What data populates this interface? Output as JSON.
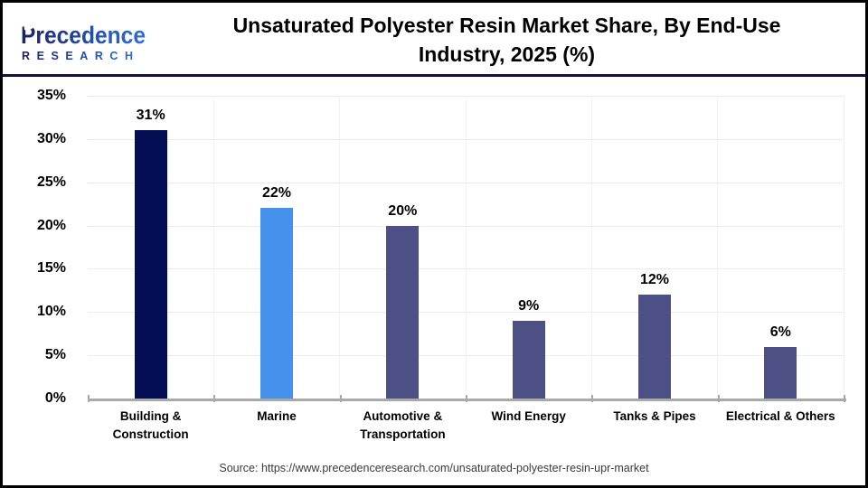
{
  "header": {
    "logo": {
      "name": "Precedence",
      "sub": "RESEARCH"
    },
    "title_lines": [
      "Unsaturated Polyester Resin Market Share, By End-Use",
      "Industry, 2025 (%)"
    ]
  },
  "chart_data": {
    "type": "bar",
    "title": "Unsaturated Polyester Resin Market Share, By End-Use Industry, 2025 (%)",
    "categories": [
      "Building & Construction",
      "Marine",
      "Automotive & Transportation",
      "Wind Energy",
      "Tanks & Pipes",
      "Electrical & Others"
    ],
    "values": [
      31,
      22,
      20,
      9,
      12,
      6
    ],
    "value_labels": [
      "31%",
      "22%",
      "20%",
      "9%",
      "12%",
      "6%"
    ],
    "bar_colors": [
      "#040e55",
      "#4691ec",
      "#4c5085",
      "#4c5085",
      "#4c5085",
      "#4c5085"
    ],
    "xlabel": "",
    "ylabel": "",
    "ylim": [
      0,
      35
    ],
    "yticks": [
      0,
      5,
      10,
      15,
      20,
      25,
      30,
      35
    ],
    "ytick_labels": [
      "0%",
      "5%",
      "10%",
      "15%",
      "20%",
      "25%",
      "30%",
      "35%"
    ],
    "grid": true,
    "legend": "none"
  },
  "footer": {
    "source": "Source: https://www.precedenceresearch.com/unsaturated-polyester-resin-upr-market"
  },
  "colors": {
    "navy_bar": "#040e55",
    "light_blue_bar": "#4691ec",
    "slate_bar": "#4c5085",
    "divider_navy": "#0e1040",
    "axis_gray": "#a9a9a9",
    "grid_gray": "#ececec",
    "logo_gradient_start": "#1b2262",
    "logo_gradient_end": "#2e6fe0"
  }
}
